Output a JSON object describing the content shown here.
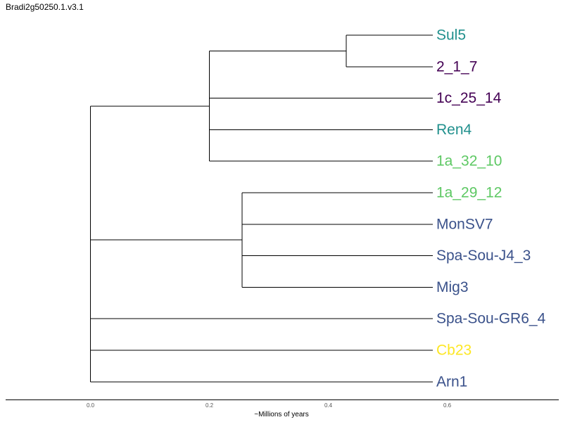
{
  "title": "Bradi2g50250.1.v3.1",
  "axis": {
    "label": "~Millions of years",
    "ticks": [
      {
        "value": 0.0,
        "label": "0.0"
      },
      {
        "value": 0.2,
        "label": "0.2"
      },
      {
        "value": 0.4,
        "label": "0.4"
      },
      {
        "value": 0.6,
        "label": "0.6"
      }
    ]
  },
  "colors": {
    "teal": "#21908d",
    "purple": "#440154",
    "green": "#5dc863",
    "blue": "#3b528b",
    "yellow": "#fde725"
  },
  "tree": {
    "depth": 0.0,
    "children": [
      {
        "depth": 0.2,
        "children": [
          {
            "depth": 0.43,
            "children": [
              {
                "name": "Sul5",
                "color": "teal"
              },
              {
                "name": "2_1_7",
                "color": "purple"
              }
            ]
          },
          {
            "name": "1c_25_14",
            "color": "purple"
          },
          {
            "name": "Ren4",
            "color": "teal"
          },
          {
            "name": "1a_32_10",
            "color": "green"
          }
        ]
      },
      {
        "depth": 0.0,
        "children": [
          {
            "depth": 0.255,
            "children": [
              {
                "name": "1a_29_12",
                "color": "green"
              },
              {
                "name": "MonSV7",
                "color": "blue"
              },
              {
                "name": "Spa-Sou-J4_3",
                "color": "blue"
              },
              {
                "name": "Mig3",
                "color": "blue"
              }
            ]
          },
          {
            "name": "Spa-Sou-GR6_4",
            "color": "blue"
          },
          {
            "name": "Cb23",
            "color": "yellow"
          },
          {
            "name": "Arn1",
            "color": "blue"
          }
        ]
      }
    ]
  }
}
